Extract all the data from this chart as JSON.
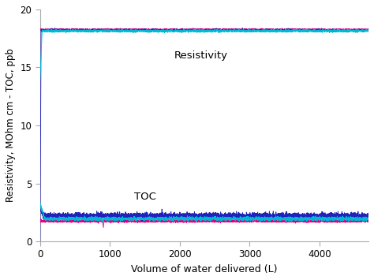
{
  "xlabel": "Volume of water delivered (L)",
  "ylabel": "Resistivity, MOhm cm - TOC, ppb",
  "xlim": [
    0,
    4700
  ],
  "ylim": [
    0,
    20
  ],
  "xticks": [
    0,
    1000,
    2000,
    3000,
    4000
  ],
  "yticks": [
    0,
    5,
    10,
    15,
    20
  ],
  "resistivity_label": "Resistivity",
  "toc_label": "TOC",
  "resistivity_level": 18.2,
  "colors": {
    "navy": "#2222bb",
    "magenta": "#e0007f",
    "cyan": "#00b8d4"
  },
  "n_points": 4700,
  "seed": 42,
  "background_color": "#ffffff",
  "spine_color": "#aaaaaa",
  "figsize": [
    4.74,
    3.55
  ],
  "dpi": 100
}
